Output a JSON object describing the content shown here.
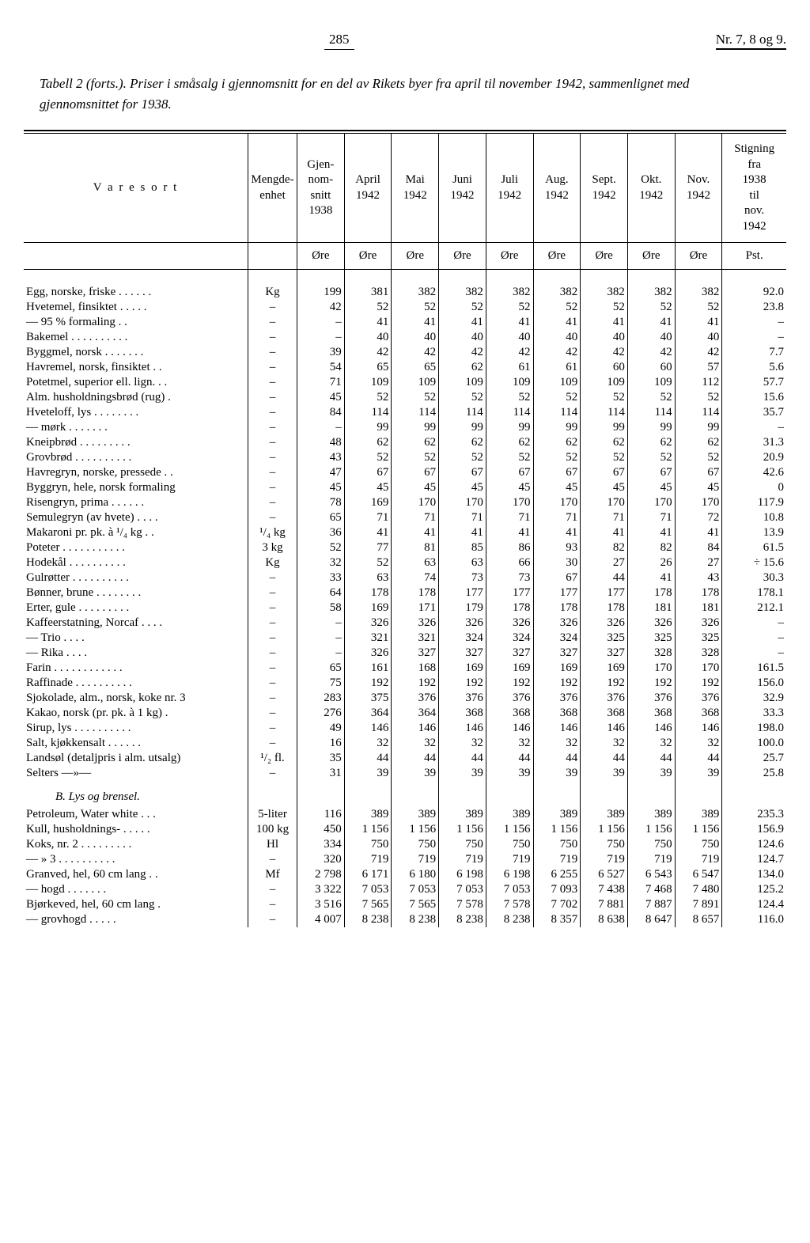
{
  "page": {
    "number": "285",
    "issue": "Nr. 7, 8 og 9."
  },
  "caption": {
    "label": "Tabell 2 (forts.).",
    "text": "Priser i småsalg i gjennomsnitt for en del av Rikets byer fra april til november 1942, sammenlignet med gjennomsnittet for 1938."
  },
  "columns": {
    "c0": "V a r e s o r t",
    "c1": "Mengde-\nenhet",
    "c2": "Gjen-\nnom-\nsnitt\n1938",
    "c3": "April\n1942",
    "c4": "Mai\n1942",
    "c5": "Juni\n1942",
    "c6": "Juli\n1942",
    "c7": "Aug.\n1942",
    "c8": "Sept.\n1942",
    "c9": "Okt.\n1942",
    "c10": "Nov.\n1942",
    "c11": "Stigning\nfra\n1938\ntil\nnov.\n1942"
  },
  "units": {
    "u2": "Øre",
    "u3": "Øre",
    "u4": "Øre",
    "u5": "Øre",
    "u6": "Øre",
    "u7": "Øre",
    "u8": "Øre",
    "u9": "Øre",
    "u10": "Øre",
    "u11": "Pst."
  },
  "rows": [
    {
      "n": "Egg, norske, friske . . . . . .",
      "u": "Kg",
      "v": [
        "199",
        "381",
        "382",
        "382",
        "382",
        "382",
        "382",
        "382",
        "382",
        "92.0"
      ]
    },
    {
      "n": "Hvetemel, finsiktet  . . . . .",
      "u": "–",
      "v": [
        "42",
        "52",
        "52",
        "52",
        "52",
        "52",
        "52",
        "52",
        "52",
        "23.8"
      ]
    },
    {
      "n": "—      95 % formaling . .",
      "u": "–",
      "v": [
        "–",
        "41",
        "41",
        "41",
        "41",
        "41",
        "41",
        "41",
        "41",
        "–"
      ]
    },
    {
      "n": "Bakemel  . . . . . . . . . .",
      "u": "–",
      "v": [
        "–",
        "40",
        "40",
        "40",
        "40",
        "40",
        "40",
        "40",
        "40",
        "–"
      ]
    },
    {
      "n": "Byggmel, norsk . . . . . . .",
      "u": "–",
      "v": [
        "39",
        "42",
        "42",
        "42",
        "42",
        "42",
        "42",
        "42",
        "42",
        "7.7"
      ]
    },
    {
      "n": "Havremel, norsk, finsiktet . .",
      "u": "–",
      "v": [
        "54",
        "65",
        "65",
        "62",
        "61",
        "61",
        "60",
        "60",
        "57",
        "5.6"
      ]
    },
    {
      "n": "Potetmel, superior ell. lign. . .",
      "u": "–",
      "v": [
        "71",
        "109",
        "109",
        "109",
        "109",
        "109",
        "109",
        "109",
        "112",
        "57.7"
      ]
    },
    {
      "n": "Alm. husholdningsbrød (rug) .",
      "u": "–",
      "v": [
        "45",
        "52",
        "52",
        "52",
        "52",
        "52",
        "52",
        "52",
        "52",
        "15.6"
      ]
    },
    {
      "n": "Hveteloff, lys . . . . . . . .",
      "u": "–",
      "v": [
        "84",
        "114",
        "114",
        "114",
        "114",
        "114",
        "114",
        "114",
        "114",
        "35.7"
      ]
    },
    {
      "n": "—     mørk  . . . . . . .",
      "u": "–",
      "v": [
        "–",
        "99",
        "99",
        "99",
        "99",
        "99",
        "99",
        "99",
        "99",
        "–"
      ]
    },
    {
      "n": "Kneipbrød  . . . . . . . . .",
      "u": "–",
      "v": [
        "48",
        "62",
        "62",
        "62",
        "62",
        "62",
        "62",
        "62",
        "62",
        "31.3"
      ]
    },
    {
      "n": "Grovbrød . . . . . . . . . .",
      "u": "–",
      "v": [
        "43",
        "52",
        "52",
        "52",
        "52",
        "52",
        "52",
        "52",
        "52",
        "20.9"
      ]
    },
    {
      "n": "Havregryn, norske, pressede . .",
      "u": "–",
      "v": [
        "47",
        "67",
        "67",
        "67",
        "67",
        "67",
        "67",
        "67",
        "67",
        "42.6"
      ]
    },
    {
      "n": "Byggryn, hele, norsk formaling",
      "u": "–",
      "v": [
        "45",
        "45",
        "45",
        "45",
        "45",
        "45",
        "45",
        "45",
        "45",
        "0"
      ]
    },
    {
      "n": "Risengryn, prima . . . . . .",
      "u": "–",
      "v": [
        "78",
        "169",
        "170",
        "170",
        "170",
        "170",
        "170",
        "170",
        "170",
        "117.9"
      ]
    },
    {
      "n": "Semulegryn (av hvete) . . . .",
      "u": "–",
      "v": [
        "65",
        "71",
        "71",
        "71",
        "71",
        "71",
        "71",
        "71",
        "72",
        "10.8"
      ]
    },
    {
      "n": "Makaroni pr. pk. à ¹/₄ kg  . .",
      "u": "¹/₄ kg",
      "v": [
        "36",
        "41",
        "41",
        "41",
        "41",
        "41",
        "41",
        "41",
        "41",
        "13.9"
      ]
    },
    {
      "n": "Poteter . . . . . . . . . . .",
      "u": "3 kg",
      "v": [
        "52",
        "77",
        "81",
        "85",
        "86",
        "93",
        "82",
        "82",
        "84",
        "61.5"
      ]
    },
    {
      "n": "Hodekål  . . . . . . . . . .",
      "u": "Kg",
      "v": [
        "32",
        "52",
        "63",
        "63",
        "66",
        "30",
        "27",
        "26",
        "27",
        "÷ 15.6"
      ]
    },
    {
      "n": "Gulrøtter  . . . . . . . . . .",
      "u": "–",
      "v": [
        "33",
        "63",
        "74",
        "73",
        "73",
        "67",
        "44",
        "41",
        "43",
        "30.3"
      ]
    },
    {
      "n": "Bønner, brune . . . . . . . .",
      "u": "–",
      "v": [
        "64",
        "178",
        "178",
        "177",
        "177",
        "177",
        "177",
        "178",
        "178",
        "178.1"
      ]
    },
    {
      "n": "Erter, gule  . . . . . . . . .",
      "u": "–",
      "v": [
        "58",
        "169",
        "171",
        "179",
        "178",
        "178",
        "178",
        "181",
        "181",
        "212.1"
      ]
    },
    {
      "n": "Kaffeerstatning, Norcaf . . . .",
      "u": "–",
      "v": [
        "–",
        "326",
        "326",
        "326",
        "326",
        "326",
        "326",
        "326",
        "326",
        "–"
      ]
    },
    {
      "n": "—            Trio .  . . .",
      "u": "–",
      "v": [
        "–",
        "321",
        "321",
        "324",
        "324",
        "324",
        "325",
        "325",
        "325",
        "–"
      ]
    },
    {
      "n": "—            Rika  . . . .",
      "u": "–",
      "v": [
        "–",
        "326",
        "327",
        "327",
        "327",
        "327",
        "327",
        "328",
        "328",
        "–"
      ]
    },
    {
      "n": "Farin . . . . . . . . . . . .",
      "u": "–",
      "v": [
        "65",
        "161",
        "168",
        "169",
        "169",
        "169",
        "169",
        "170",
        "170",
        "161.5"
      ]
    },
    {
      "n": "Raffinade . . . . . . . . . .",
      "u": "–",
      "v": [
        "75",
        "192",
        "192",
        "192",
        "192",
        "192",
        "192",
        "192",
        "192",
        "156.0"
      ]
    },
    {
      "n": "Sjokolade, alm., norsk, koke nr. 3",
      "u": "–",
      "v": [
        "283",
        "375",
        "376",
        "376",
        "376",
        "376",
        "376",
        "376",
        "376",
        "32.9"
      ]
    },
    {
      "n": "Kakao, norsk (pr. pk. à 1 kg)  .",
      "u": "–",
      "v": [
        "276",
        "364",
        "364",
        "368",
        "368",
        "368",
        "368",
        "368",
        "368",
        "33.3"
      ]
    },
    {
      "n": "Sirup, lys . . . . . . . . . .",
      "u": "–",
      "v": [
        "49",
        "146",
        "146",
        "146",
        "146",
        "146",
        "146",
        "146",
        "146",
        "198.0"
      ]
    },
    {
      "n": "Salt, kjøkkensalt  . . . . . .",
      "u": "–",
      "v": [
        "16",
        "32",
        "32",
        "32",
        "32",
        "32",
        "32",
        "32",
        "32",
        "100.0"
      ]
    },
    {
      "n": "Landsøl (detaljpris i alm. utsalg)",
      "u": "¹/₂ fl.",
      "v": [
        "35",
        "44",
        "44",
        "44",
        "44",
        "44",
        "44",
        "44",
        "44",
        "25.7"
      ]
    },
    {
      "n": "Selters      —»—",
      "u": "–",
      "v": [
        "31",
        "39",
        "39",
        "39",
        "39",
        "39",
        "39",
        "39",
        "39",
        "25.8"
      ]
    }
  ],
  "sectionB": "B.   Lys og brensel.",
  "rowsB": [
    {
      "n": "Petroleum, Water white  . . .",
      "u": "5-liter",
      "v": [
        "116",
        "389",
        "389",
        "389",
        "389",
        "389",
        "389",
        "389",
        "389",
        "235.3"
      ]
    },
    {
      "n": "Kull, husholdnings-  . . . . .",
      "u": "100 kg",
      "v": [
        "450",
        "1 156",
        "1 156",
        "1 156",
        "1 156",
        "1 156",
        "1 156",
        "1 156",
        "1 156",
        "156.9"
      ]
    },
    {
      "n": "Koks, nr. 2 . . . . . . . . .",
      "u": "Hl",
      "v": [
        "334",
        "750",
        "750",
        "750",
        "750",
        "750",
        "750",
        "750",
        "750",
        "124.6"
      ]
    },
    {
      "n": "—   »  3 . . . . . . . . . .",
      "u": "–",
      "v": [
        "320",
        "719",
        "719",
        "719",
        "719",
        "719",
        "719",
        "719",
        "719",
        "124.7"
      ]
    },
    {
      "n": "Granved, hel, 60 cm lang  . .",
      "u": "Mf",
      "v": [
        "2 798",
        "6 171",
        "6 180",
        "6 198",
        "6 198",
        "6 255",
        "6 527",
        "6 543",
        "6 547",
        "134.0"
      ]
    },
    {
      "n": "—      hogd . . . . . . .",
      "u": "–",
      "v": [
        "3 322",
        "7 053",
        "7 053",
        "7 053",
        "7 053",
        "7 093",
        "7 438",
        "7 468",
        "7 480",
        "125.2"
      ]
    },
    {
      "n": "Bjørkeved, hel, 60 cm lang  .",
      "u": "–",
      "v": [
        "3 516",
        "7 565",
        "7 565",
        "7 578",
        "7 578",
        "7 702",
        "7 881",
        "7 887",
        "7 891",
        "124.4"
      ]
    },
    {
      "n": "—       grovhogd . . . . .",
      "u": "–",
      "v": [
        "4 007",
        "8 238",
        "8 238",
        "8 238",
        "8 238",
        "8 357",
        "8 638",
        "8 647",
        "8 657",
        "116.0"
      ]
    }
  ]
}
